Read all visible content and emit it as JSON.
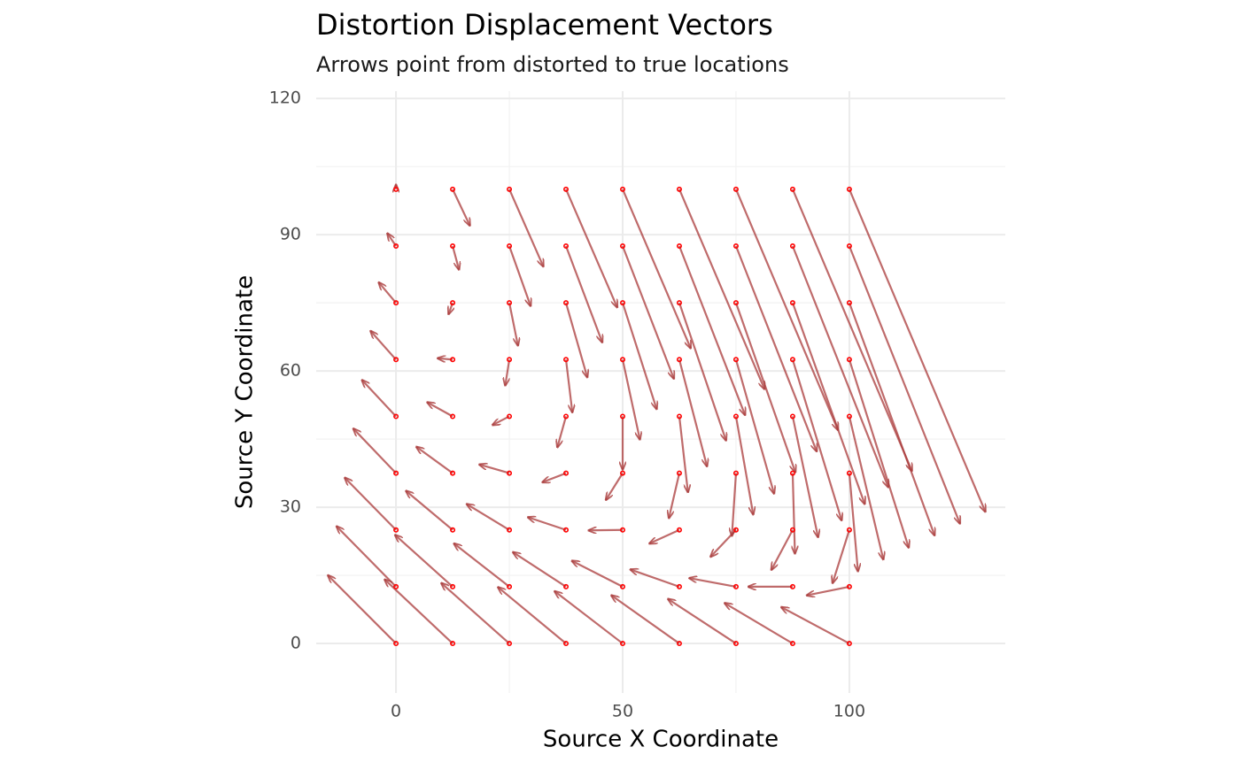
{
  "chart_data": {
    "type": "segment",
    "title": "Distortion Displacement Vectors",
    "subtitle": "Arrows point from distorted to true locations",
    "x_label": "Source X Coordinate",
    "y_label": "Source Y Coordinate",
    "xlim": [
      -17.6,
      134.4
    ],
    "ylim": [
      -10.9,
      121.6
    ],
    "xticks": [
      0,
      50,
      100
    ],
    "yticks": [
      0,
      30,
      60,
      90,
      120
    ],
    "minor_xticks": [
      25,
      75
    ],
    "minor_yticks": [
      15,
      45,
      75,
      105
    ],
    "grid": true,
    "arrow_color": "#a93a3a",
    "point_color": "#ff0000",
    "segments": {
      "x": [
        0,
        12.5,
        25,
        37.5,
        50,
        62.5,
        75,
        87.5,
        100,
        0,
        12.5,
        25,
        37.5,
        50,
        62.5,
        75,
        87.5,
        100,
        0,
        12.5,
        25,
        37.5,
        50,
        62.5,
        75,
        87.5,
        100,
        0,
        12.5,
        25,
        37.5,
        50,
        62.5,
        75,
        87.5,
        100,
        0,
        12.5,
        25,
        37.5,
        50,
        62.5,
        75,
        87.5,
        100,
        0,
        12.5,
        25,
        37.5,
        50,
        62.5,
        75,
        87.5,
        100,
        0,
        12.5,
        25,
        37.5,
        50,
        62.5,
        75,
        87.5,
        100,
        0,
        12.5,
        25,
        37.5,
        50,
        62.5,
        75,
        87.5,
        100,
        0,
        12.5,
        25,
        37.5,
        50,
        62.5,
        75,
        87.5,
        100
      ],
      "y": [
        0,
        0,
        0,
        0,
        0,
        0,
        0,
        0,
        0,
        12.5,
        12.5,
        12.5,
        12.5,
        12.5,
        12.5,
        12.5,
        12.5,
        12.5,
        25,
        25,
        25,
        25,
        25,
        25,
        25,
        25,
        25,
        37.5,
        37.5,
        37.5,
        37.5,
        37.5,
        37.5,
        37.5,
        37.5,
        37.5,
        50,
        50,
        50,
        50,
        50,
        50,
        50,
        50,
        50,
        62.5,
        62.5,
        62.5,
        62.5,
        62.5,
        62.5,
        62.5,
        62.5,
        62.5,
        75,
        75,
        75,
        75,
        75,
        75,
        75,
        75,
        75,
        87.5,
        87.5,
        87.5,
        87.5,
        87.5,
        87.5,
        87.5,
        87.5,
        87.5,
        100,
        100,
        100,
        100,
        100,
        100,
        100,
        100,
        100
      ],
      "xend": [
        -15,
        -2.5,
        10,
        22.5,
        35,
        47.5,
        60,
        72.5,
        85,
        -13.1,
        -0.2,
        12.8,
        25.8,
        38.8,
        51.7,
        64.7,
        77.7,
        90.6,
        -11.3,
        2.2,
        15.6,
        29.1,
        42.5,
        55.9,
        69.4,
        82.8,
        96.3,
        -9.4,
        4.5,
        18.4,
        32.3,
        46.3,
        60.2,
        74.1,
        88,
        101.9,
        -7.5,
        6.9,
        21.3,
        35.6,
        50,
        64.4,
        78.8,
        93.1,
        107.5,
        -5.6,
        9.2,
        24.1,
        38.9,
        53.8,
        68.6,
        83.4,
        98.3,
        113.1,
        -3.8,
        11.6,
        26.9,
        42.2,
        57.5,
        72.8,
        88.1,
        103.4,
        118.8,
        -1.9,
        13.9,
        29.7,
        45.5,
        61.3,
        77,
        92.8,
        108.6,
        124.4,
        0,
        16.3,
        32.5,
        48.8,
        65,
        81.3,
        97.5,
        113.8,
        130
      ],
      "yend": [
        15,
        14.1,
        13.3,
        12.4,
        11.5,
        10.6,
        9.8,
        8.9,
        8,
        25.8,
        23.9,
        22,
        20.1,
        18.2,
        16.3,
        14.4,
        12.5,
        10.6,
        36.5,
        33.6,
        30.7,
        27.8,
        24.9,
        22,
        19.1,
        16.2,
        13.3,
        47.3,
        43.3,
        39.4,
        35.5,
        31.6,
        27.6,
        23.7,
        19.8,
        15.9,
        58,
        53.1,
        48.1,
        43.2,
        38.3,
        33.3,
        28.4,
        23.4,
        18.5,
        68.8,
        62.8,
        56.8,
        50.9,
        44.9,
        39,
        33,
        27.1,
        21.1,
        79.5,
        72.5,
        65.6,
        58.6,
        51.6,
        44.7,
        37.7,
        30.7,
        23.8,
        90.3,
        82.3,
        74.3,
        66.3,
        58.3,
        50.3,
        42.3,
        34.4,
        26.4,
        101,
        92,
        83,
        74,
        65,
        56,
        47,
        38,
        29
      ]
    }
  }
}
